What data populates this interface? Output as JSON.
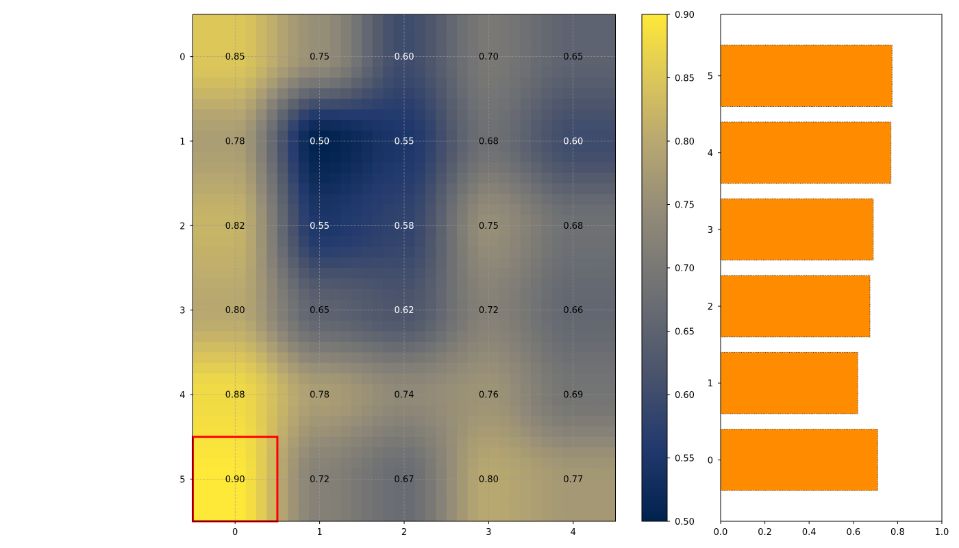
{
  "chart_data": [
    {
      "type": "heatmap",
      "rows": [
        "0",
        "1",
        "2",
        "3",
        "4",
        "5"
      ],
      "cols": [
        "0",
        "1",
        "2",
        "3",
        "4"
      ],
      "values": [
        [
          0.85,
          0.75,
          0.6,
          0.7,
          0.65
        ],
        [
          0.78,
          0.5,
          0.55,
          0.68,
          0.6
        ],
        [
          0.82,
          0.55,
          0.58,
          0.75,
          0.68
        ],
        [
          0.8,
          0.65,
          0.62,
          0.72,
          0.66
        ],
        [
          0.88,
          0.78,
          0.74,
          0.76,
          0.69
        ],
        [
          0.9,
          0.72,
          0.67,
          0.8,
          0.77
        ]
      ],
      "interpolation": "bicubic",
      "colormap": "cividis",
      "grid": true,
      "highlight_cell": {
        "row": 5,
        "col": 0,
        "color": "#ff0000"
      },
      "colorbar": {
        "min": 0.5,
        "max": 0.9,
        "ticks": [
          "0.50",
          "0.55",
          "0.60",
          "0.65",
          "0.70",
          "0.75",
          "0.80",
          "0.85",
          "0.90"
        ]
      }
    },
    {
      "type": "bar",
      "orientation": "horizontal",
      "categories": [
        "0",
        "1",
        "2",
        "3",
        "4",
        "5"
      ],
      "values": [
        0.71,
        0.62,
        0.675,
        0.69,
        0.77,
        0.775
      ],
      "color": "#ff8c00",
      "edgecolor": "#333333",
      "edgestyle": "dotted",
      "xlim": [
        0,
        1
      ],
      "xticks": [
        "0.0",
        "0.2",
        "0.4",
        "0.6",
        "0.8",
        "1.0"
      ]
    }
  ]
}
